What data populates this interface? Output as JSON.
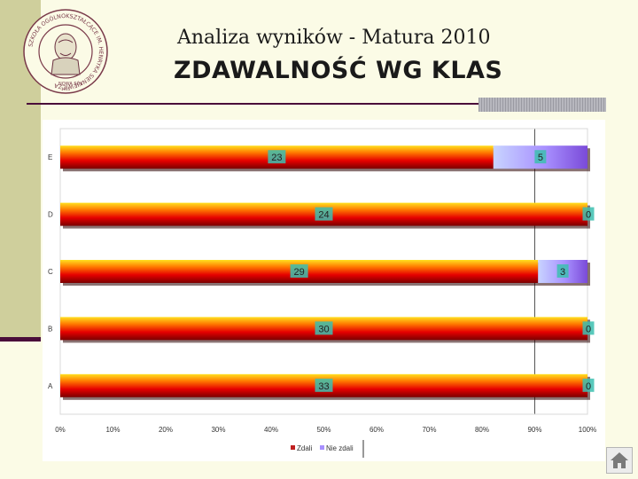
{
  "header": {
    "subtitle": "Analiza wyników - Matura 2010",
    "title": "ZDAWALNOŚĆ WG KLAS"
  },
  "logo": {
    "ring_text": "SZKOŁA OGÓLNOKSZTAŁCĄCE IM. HENRYKA SIENKIEWICZA",
    "bottom_text": "NOWA SÓL",
    "year": "1945"
  },
  "colors": {
    "background": "#fbfbe6",
    "sidebar": "#cfcf9c",
    "accent_rule": "#4a0d3a",
    "zdali_gradient": [
      "#ffe020",
      "#ff7a00",
      "#e60000",
      "#7a0000"
    ],
    "niezdali_gradient": [
      "#c8d4ff",
      "#a890ff",
      "#7a4ad8"
    ],
    "label_box": "#3cc0b0"
  },
  "chart_data": {
    "type": "bar",
    "orientation": "horizontal",
    "stacked": "percent",
    "categories": [
      "E",
      "D",
      "C",
      "B",
      "A"
    ],
    "series": [
      {
        "name": "Zdali",
        "values": [
          23,
          24,
          29,
          30,
          33
        ]
      },
      {
        "name": "Nie zdali",
        "values": [
          5,
          0,
          3,
          0,
          0
        ]
      }
    ],
    "x_ticks": [
      "0%",
      "10%",
      "20%",
      "30%",
      "40%",
      "50%",
      "60%",
      "70%",
      "80%",
      "90%",
      "100%"
    ],
    "xlim": [
      0,
      100
    ],
    "legend_position": "bottom",
    "grid": true
  },
  "nav": {
    "icon": "home-icon"
  }
}
